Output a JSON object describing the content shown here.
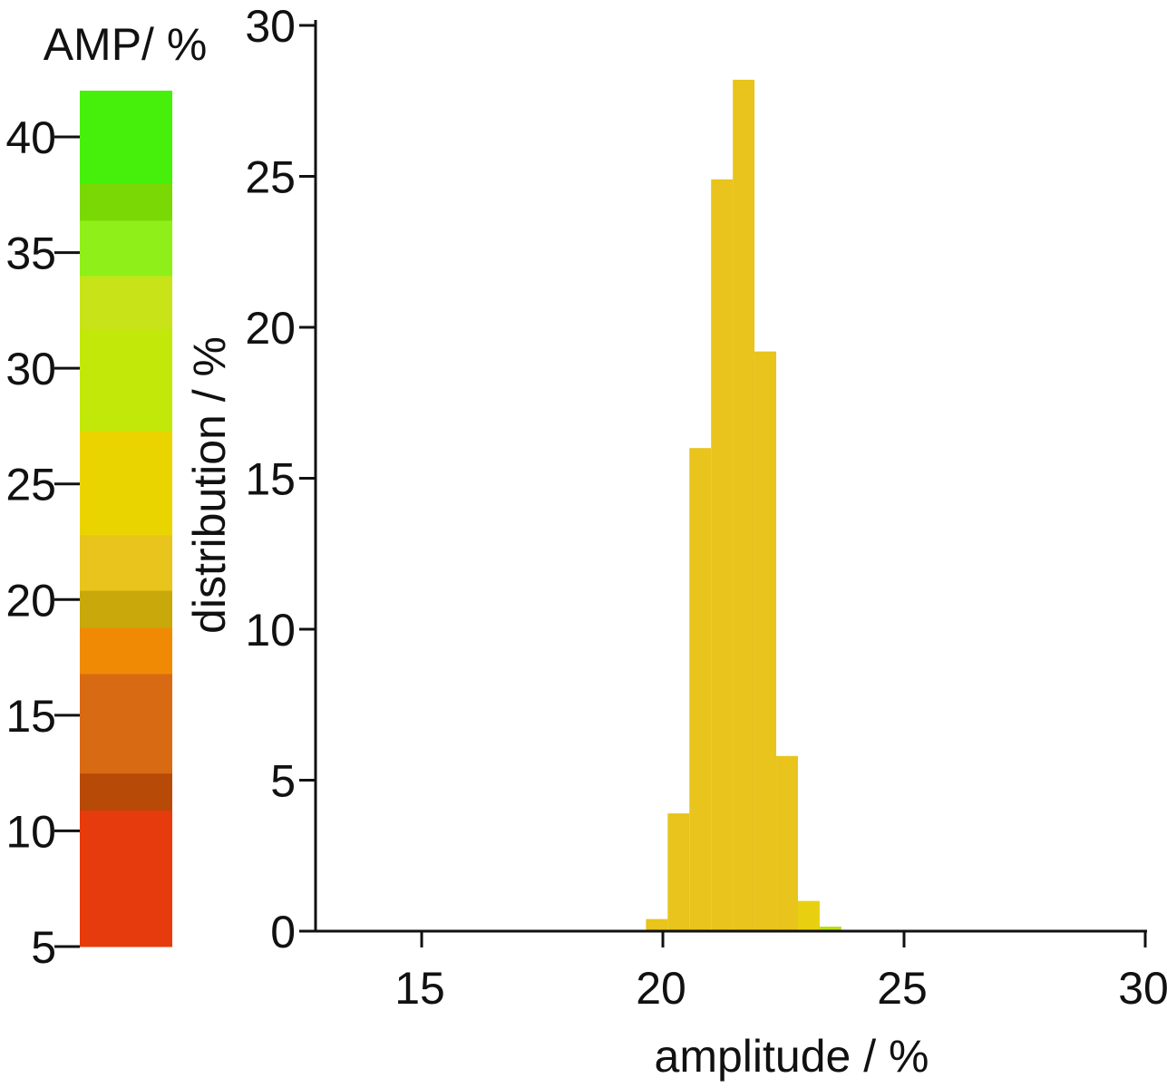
{
  "chart_data": {
    "type": "bar",
    "xlabel": "amplitude / %",
    "ylabel": "distribution / %",
    "xlim": [
      12.8,
      30
    ],
    "ylim": [
      0,
      30
    ],
    "x_ticks": [
      "15",
      "20",
      "25",
      "30"
    ],
    "y_ticks": [
      "0",
      "5",
      "10",
      "15",
      "20",
      "25",
      "30"
    ],
    "bin_width": 0.45,
    "series": [
      {
        "values": [
          {
            "x": 19.65,
            "y": 0.4,
            "color": "#e8c41c"
          },
          {
            "x": 20.1,
            "y": 3.9,
            "color": "#e8c41c"
          },
          {
            "x": 20.55,
            "y": 16.0,
            "color": "#e8c41c"
          },
          {
            "x": 21.0,
            "y": 24.9,
            "color": "#e8c41c"
          },
          {
            "x": 21.45,
            "y": 28.2,
            "color": "#e8c41c"
          },
          {
            "x": 21.9,
            "y": 19.2,
            "color": "#e8c41c"
          },
          {
            "x": 22.35,
            "y": 5.8,
            "color": "#e8c41c"
          },
          {
            "x": 22.8,
            "y": 1.0,
            "color": "#e8d010"
          },
          {
            "x": 23.25,
            "y": 0.15,
            "color": "#b8e010"
          }
        ]
      }
    ],
    "colorbar": {
      "title": "AMP/ %",
      "ticks": [
        "5",
        "10",
        "15",
        "20",
        "25",
        "30",
        "35",
        "40"
      ],
      "range": [
        5,
        42
      ],
      "bands": [
        {
          "from": 5,
          "to": 10.9,
          "color": "#e63b0c"
        },
        {
          "from": 10.9,
          "to": 12.5,
          "color": "#b84a08"
        },
        {
          "from": 12.5,
          "to": 16.8,
          "color": "#d96a14"
        },
        {
          "from": 16.8,
          "to": 18.8,
          "color": "#f08a05"
        },
        {
          "from": 18.8,
          "to": 20.4,
          "color": "#c9a80c"
        },
        {
          "from": 20.4,
          "to": 22.8,
          "color": "#e8c41c"
        },
        {
          "from": 22.8,
          "to": 27.3,
          "color": "#ead400"
        },
        {
          "from": 27.3,
          "to": 31.7,
          "color": "#c2e80a"
        },
        {
          "from": 31.7,
          "to": 34.0,
          "color": "#c8e418"
        },
        {
          "from": 34.0,
          "to": 36.4,
          "color": "#8ef018"
        },
        {
          "from": 36.4,
          "to": 38.0,
          "color": "#7ad804"
        },
        {
          "from": 38.0,
          "to": 42.0,
          "color": "#47f00a"
        }
      ]
    }
  }
}
